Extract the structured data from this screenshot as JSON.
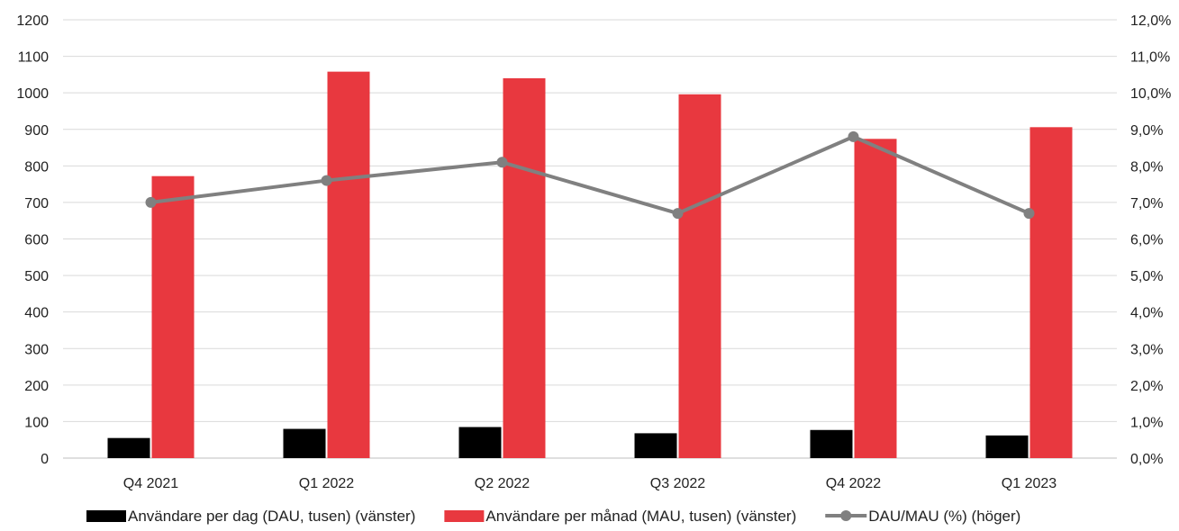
{
  "chart_data": {
    "type": "bar",
    "categories": [
      "Q4 2021",
      "Q1 2022",
      "Q2 2022",
      "Q3 2022",
      "Q4 2022",
      "Q1 2023"
    ],
    "series": [
      {
        "name": "Användare per dag (DAU, tusen) (vänster)",
        "type": "bar",
        "axis": "left",
        "color": "#000000",
        "values": [
          55,
          80,
          85,
          68,
          77,
          62
        ]
      },
      {
        "name": "Användare per månad (MAU, tusen) (vänster)",
        "type": "bar",
        "axis": "left",
        "color": "#e8383f",
        "values": [
          772,
          1058,
          1040,
          996,
          874,
          906
        ]
      },
      {
        "name": "DAU/MAU (%) (höger)",
        "type": "line",
        "axis": "right",
        "color": "#808080",
        "values": [
          7.0,
          7.6,
          8.1,
          6.7,
          8.8,
          6.7
        ]
      }
    ],
    "y_left": {
      "range": [
        0,
        1200
      ],
      "ticks": [
        "0",
        "100",
        "200",
        "300",
        "400",
        "500",
        "600",
        "700",
        "800",
        "900",
        "1000",
        "1100",
        "1200"
      ]
    },
    "y_right": {
      "range": [
        0,
        12
      ],
      "ticks": [
        "0,0%",
        "1,0%",
        "2,0%",
        "3,0%",
        "4,0%",
        "5,0%",
        "6,0%",
        "7,0%",
        "8,0%",
        "9,0%",
        "10,0%",
        "11,0%",
        "12,0%"
      ]
    },
    "grid": true,
    "legend": "bottom"
  }
}
